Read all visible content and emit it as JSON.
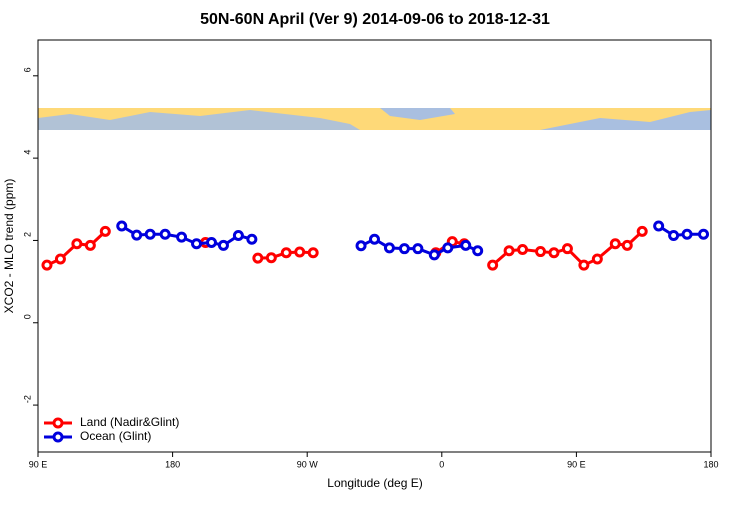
{
  "chart_data": {
    "type": "line",
    "title": "50N-60N April (Ver 9)   2014-09-06 to 2018-12-31",
    "x_label": "Longitude (deg E)",
    "y_label": "XCO2 - MLO trend (ppm)",
    "xlim": [
      90,
      540
    ],
    "xticks": [
      {
        "value": 90,
        "label": "90 E"
      },
      180,
      {
        "value": 270,
        "label": "90 W"
      },
      {
        "value": 360,
        "label": "0"
      },
      {
        "value": 450,
        "label": "90 E"
      },
      {
        "value": 540,
        "label": "180"
      }
    ],
    "ylim": [
      -3.14,
      6.87
    ],
    "yticks": [
      -2,
      0,
      2,
      4,
      6
    ],
    "legend": "bottom-left",
    "series": [
      {
        "name": "Land (Nadir&Glint)",
        "color": "#ff0000",
        "x": [
          96,
          105,
          116,
          125,
          135,
          202,
          237,
          246,
          256,
          265,
          274,
          356,
          367,
          375,
          394,
          405,
          414,
          426,
          435,
          444,
          455,
          464,
          476,
          484,
          494
        ],
        "values": [
          1.4,
          1.55,
          1.92,
          1.88,
          2.22,
          1.95,
          1.57,
          1.58,
          1.7,
          1.72,
          1.7,
          1.7,
          1.97,
          1.92,
          1.4,
          1.75,
          1.78,
          1.73,
          1.7,
          1.8,
          1.4,
          1.55,
          1.92,
          1.88,
          2.22
        ]
      },
      {
        "name": "Ocean (Glint)",
        "color": "#0000dd",
        "x": [
          146,
          156,
          165,
          175,
          186,
          196,
          206,
          214,
          224,
          233,
          306,
          315,
          325,
          335,
          344,
          355,
          364,
          376,
          384,
          505,
          515,
          524,
          535
        ],
        "values": [
          2.35,
          2.13,
          2.15,
          2.15,
          2.08,
          1.92,
          1.95,
          1.88,
          2.12,
          2.03,
          1.87,
          2.03,
          1.82,
          1.8,
          1.8,
          1.65,
          1.82,
          1.88,
          1.75,
          2.35,
          2.12,
          2.15,
          2.15
        ]
      }
    ]
  }
}
